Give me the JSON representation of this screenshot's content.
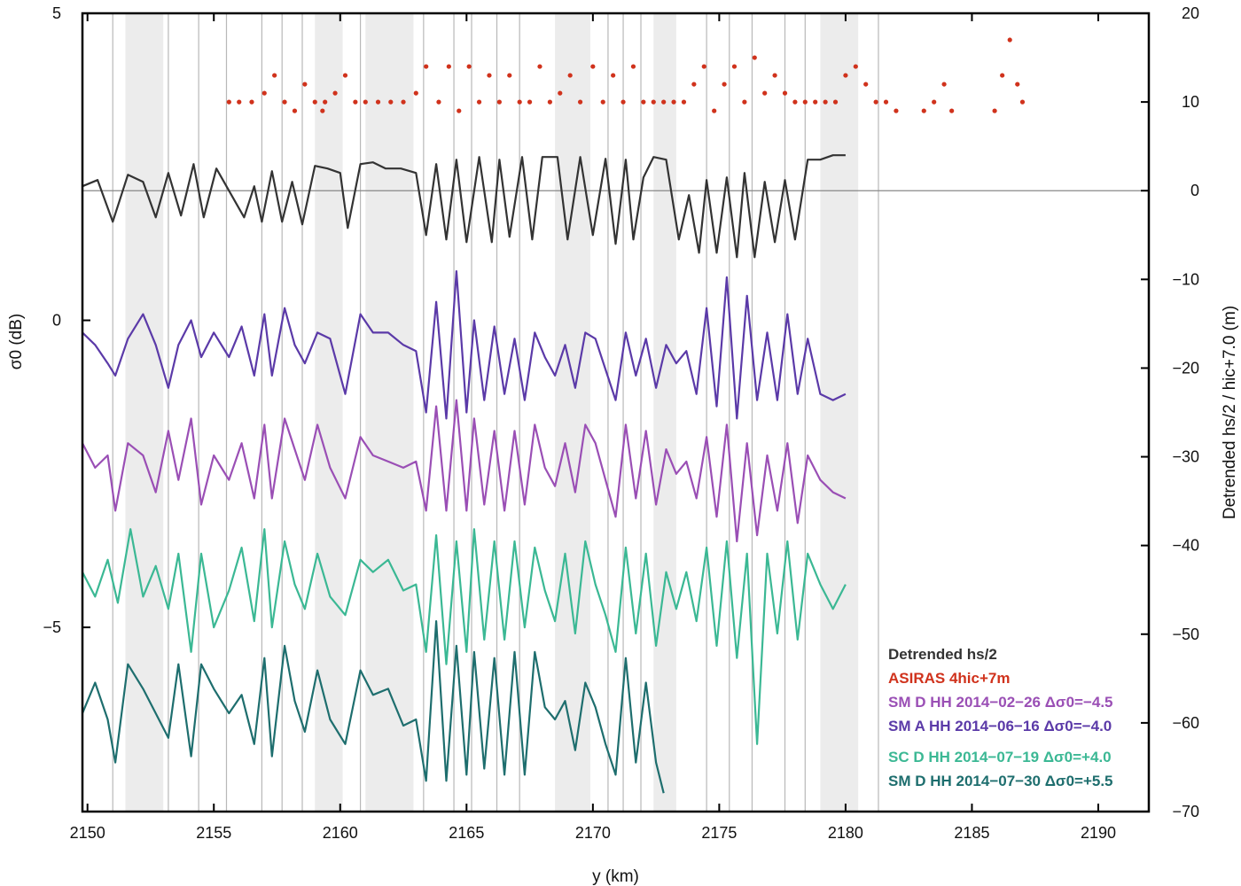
{
  "chart_data": {
    "type": "line",
    "xlabel": "y (km)",
    "ylabel_left": "σ0 (dB)",
    "ylabel_right": "Detrended hs/2 / hic+7.0  (m)",
    "xlim": [
      2149.8,
      2192
    ],
    "ylim_left": [
      -8,
      5
    ],
    "ylim_right": [
      -70,
      20
    ],
    "x_ticks": [
      "2150",
      "2155",
      "2160",
      "2165",
      "2170",
      "2175",
      "2180",
      "2185",
      "2190"
    ],
    "y_left_ticks": [
      "5",
      "0",
      "−5"
    ],
    "y_right_ticks": [
      "20",
      "10",
      "0",
      "−10",
      "−20",
      "−30",
      "−40",
      "−50",
      "−60",
      "−70"
    ],
    "grid": false,
    "shaded_bands_km": [
      [
        2151.5,
        2153.0
      ],
      [
        2159.0,
        2160.1
      ],
      [
        2161.0,
        2162.9
      ],
      [
        2168.5,
        2169.9
      ],
      [
        2172.4,
        2173.3
      ],
      [
        2179.0,
        2180.5
      ]
    ],
    "vertical_lines_km": [
      2151.0,
      2153.2,
      2154.4,
      2155.5,
      2156.9,
      2157.7,
      2158.5,
      2160.8,
      2163.3,
      2164.5,
      2165.2,
      2166.2,
      2167.1,
      2170.6,
      2171.2,
      2171.9,
      2174.5,
      2175.4,
      2176.3,
      2177.6,
      2178.4,
      2181.3
    ],
    "zero_line_right": 0,
    "series": [
      {
        "name": "Detrended hs/2",
        "color": "#333333",
        "axis": "right",
        "style": "line",
        "x": [
          2149.8,
          2150.4,
          2151.0,
          2151.6,
          2152.2,
          2152.7,
          2153.2,
          2153.7,
          2154.2,
          2154.6,
          2155.1,
          2155.6,
          2156.2,
          2156.6,
          2156.9,
          2157.3,
          2157.7,
          2158.1,
          2158.5,
          2159.0,
          2159.5,
          2160.0,
          2160.3,
          2160.8,
          2161.3,
          2161.8,
          2162.4,
          2163.0,
          2163.4,
          2163.8,
          2164.2,
          2164.6,
          2165.0,
          2165.5,
          2166.0,
          2166.3,
          2166.7,
          2167.2,
          2167.6,
          2168.0,
          2168.6,
          2169.0,
          2169.5,
          2170.0,
          2170.5,
          2170.9,
          2171.3,
          2171.6,
          2172.0,
          2172.4,
          2172.9,
          2173.4,
          2173.8,
          2174.2,
          2174.5,
          2174.9,
          2175.3,
          2175.7,
          2176.0,
          2176.4,
          2176.8,
          2177.2,
          2177.6,
          2178.0,
          2178.5,
          2179.0,
          2179.5,
          2180.0
        ],
        "y": [
          0.5,
          1.2,
          -3.5,
          1.8,
          1.0,
          -3.0,
          2.0,
          -2.8,
          3.0,
          -3.0,
          2.5,
          0.0,
          -3.0,
          0.5,
          -3.5,
          2.2,
          -3.5,
          1.0,
          -3.8,
          2.8,
          2.5,
          2.0,
          -4.2,
          3.0,
          3.2,
          2.5,
          2.5,
          2.0,
          -5.0,
          3.0,
          -5.5,
          3.5,
          -5.8,
          3.8,
          -5.8,
          3.5,
          -5.2,
          3.8,
          -5.5,
          3.8,
          3.8,
          -5.5,
          3.8,
          -5.0,
          3.6,
          -6.0,
          3.5,
          -5.5,
          1.5,
          3.8,
          3.5,
          -5.5,
          -0.5,
          -7.0,
          1.2,
          -7.0,
          1.5,
          -7.5,
          2.0,
          -7.5,
          1.0,
          -5.8,
          1.2,
          -5.5,
          3.5,
          3.5,
          4.0,
          4.0
        ]
      },
      {
        "name": "ASIRAS 4hic+7m",
        "color": "#d0321c",
        "axis": "right",
        "style": "dots",
        "segments": [
          {
            "x": [
              2155.6,
              2156.0,
              2156.5,
              2157.0,
              2157.4,
              2157.8,
              2158.2,
              2158.6,
              2159.0,
              2159.3
            ],
            "y": [
              10,
              10,
              10,
              11,
              13,
              10,
              9,
              12,
              10,
              9
            ]
          },
          {
            "x": [
              2159.4,
              2159.8,
              2160.2,
              2160.6,
              2161.0,
              2161.5,
              2162.0,
              2162.5,
              2163.0,
              2163.4,
              2163.9,
              2164.3,
              2164.7,
              2165.1,
              2165.5,
              2165.9,
              2166.3,
              2166.7,
              2167.1,
              2167.5,
              2167.9,
              2168.3,
              2168.7,
              2169.1,
              2169.5,
              2170.0,
              2170.4,
              2170.8,
              2171.2,
              2171.6,
              2172.0,
              2172.4,
              2172.8,
              2173.2,
              2173.6,
              2174.0,
              2174.4,
              2174.8,
              2175.2,
              2175.6,
              2176.0,
              2176.4,
              2176.8,
              2177.2,
              2177.6,
              2178.0,
              2178.4,
              2178.8,
              2179.2,
              2179.6,
              2180.0,
              2180.4,
              2180.8,
              2181.2,
              2181.6,
              2182.0
            ],
            "y": [
              10,
              11,
              13,
              10,
              10,
              10,
              10,
              10,
              11,
              14,
              10,
              14,
              9,
              14,
              10,
              13,
              10,
              13,
              10,
              10,
              14,
              10,
              11,
              13,
              10,
              14,
              10,
              13,
              10,
              14,
              10,
              10,
              10,
              10,
              10,
              12,
              14,
              9,
              12,
              14,
              10,
              15,
              11,
              13,
              11,
              10,
              10,
              10,
              10,
              10,
              13,
              14,
              12,
              10,
              10,
              9
            ]
          },
          {
            "x": [
              2183.1,
              2183.5,
              2183.9,
              2184.2
            ],
            "y": [
              9,
              10,
              12,
              9
            ]
          },
          {
            "x": [
              2185.9,
              2186.2,
              2186.5,
              2186.8,
              2187.0
            ],
            "y": [
              9,
              13,
              17,
              12,
              10
            ]
          }
        ]
      },
      {
        "name": "SM A HH 2014-06-16 Δσ0=-4.0",
        "color": "#5b3aa8",
        "axis": "left",
        "style": "line",
        "x": [
          2149.8,
          2150.3,
          2150.8,
          2151.1,
          2151.6,
          2152.2,
          2152.7,
          2153.2,
          2153.6,
          2154.1,
          2154.5,
          2155.0,
          2155.6,
          2156.1,
          2156.6,
          2157.0,
          2157.3,
          2157.8,
          2158.2,
          2158.6,
          2159.1,
          2159.6,
          2160.2,
          2160.8,
          2161.3,
          2161.9,
          2162.5,
          2163.0,
          2163.4,
          2163.8,
          2164.2,
          2164.6,
          2165.0,
          2165.3,
          2165.7,
          2166.1,
          2166.5,
          2166.9,
          2167.3,
          2167.7,
          2168.1,
          2168.5,
          2168.9,
          2169.3,
          2169.7,
          2170.1,
          2170.5,
          2170.9,
          2171.3,
          2171.7,
          2172.1,
          2172.5,
          2172.9,
          2173.3,
          2173.7,
          2174.1,
          2174.5,
          2174.9,
          2175.3,
          2175.7,
          2176.1,
          2176.5,
          2176.9,
          2177.3,
          2177.7,
          2178.1,
          2178.5,
          2179.0,
          2179.5,
          2180.0
        ],
        "y": [
          -0.2,
          -0.4,
          -0.7,
          -0.9,
          -0.3,
          0.1,
          -0.4,
          -1.1,
          -0.4,
          0.0,
          -0.6,
          -0.2,
          -0.6,
          -0.1,
          -0.9,
          0.1,
          -0.9,
          0.2,
          -0.4,
          -0.7,
          -0.2,
          -0.3,
          -1.2,
          0.1,
          -0.2,
          -0.2,
          -0.4,
          -0.5,
          -1.5,
          0.3,
          -1.6,
          0.8,
          -1.5,
          0.0,
          -1.3,
          -0.1,
          -1.2,
          -0.3,
          -1.3,
          -0.2,
          -0.6,
          -0.9,
          -0.4,
          -1.1,
          -0.2,
          -0.3,
          -0.8,
          -1.3,
          -0.2,
          -0.9,
          -0.3,
          -1.1,
          -0.4,
          -0.7,
          -0.5,
          -1.2,
          0.2,
          -1.4,
          0.7,
          -1.6,
          0.4,
          -1.3,
          -0.2,
          -1.3,
          0.1,
          -1.2,
          -0.3,
          -1.2,
          -1.3,
          -1.2
        ]
      },
      {
        "name": "SM D HH 2014-02-26 Δσ0=-4.5",
        "color": "#9a4fb5",
        "axis": "left",
        "style": "line",
        "x": [
          2149.8,
          2150.3,
          2150.8,
          2151.1,
          2151.6,
          2152.2,
          2152.7,
          2153.2,
          2153.6,
          2154.1,
          2154.5,
          2155.0,
          2155.6,
          2156.1,
          2156.6,
          2157.0,
          2157.3,
          2157.8,
          2158.2,
          2158.6,
          2159.1,
          2159.6,
          2160.2,
          2160.8,
          2161.3,
          2161.9,
          2162.5,
          2163.0,
          2163.4,
          2163.8,
          2164.2,
          2164.6,
          2165.0,
          2165.3,
          2165.7,
          2166.1,
          2166.5,
          2166.9,
          2167.3,
          2167.7,
          2168.1,
          2168.5,
          2168.9,
          2169.3,
          2169.7,
          2170.1,
          2170.5,
          2170.9,
          2171.3,
          2171.7,
          2172.1,
          2172.5,
          2172.9,
          2173.3,
          2173.7,
          2174.1,
          2174.5,
          2174.9,
          2175.3,
          2175.7,
          2176.1,
          2176.5,
          2176.9,
          2177.3,
          2177.7,
          2178.1,
          2178.5,
          2179.0,
          2179.5,
          2180.0
        ],
        "y": [
          -2.0,
          -2.4,
          -2.2,
          -3.1,
          -2.0,
          -2.2,
          -2.8,
          -1.8,
          -2.6,
          -1.6,
          -3.0,
          -2.2,
          -2.6,
          -2.0,
          -2.9,
          -1.7,
          -2.9,
          -1.6,
          -2.1,
          -2.6,
          -1.7,
          -2.4,
          -2.9,
          -1.9,
          -2.2,
          -2.3,
          -2.4,
          -2.3,
          -3.1,
          -1.4,
          -3.1,
          -1.3,
          -3.1,
          -1.6,
          -3.0,
          -1.8,
          -3.1,
          -1.8,
          -3.0,
          -1.7,
          -2.4,
          -2.7,
          -2.0,
          -2.8,
          -1.7,
          -2.0,
          -2.6,
          -3.2,
          -1.7,
          -2.9,
          -1.8,
          -3.0,
          -2.1,
          -2.5,
          -2.3,
          -2.9,
          -1.9,
          -3.2,
          -1.7,
          -3.6,
          -2.0,
          -3.5,
          -2.2,
          -3.1,
          -2.0,
          -3.3,
          -2.2,
          -2.6,
          -2.8,
          -2.9
        ]
      },
      {
        "name": "SC D HH 2014-07-19 Δσ0=+4.0",
        "color": "#3bb894",
        "axis": "left",
        "style": "line",
        "x": [
          2149.8,
          2150.3,
          2150.8,
          2151.2,
          2151.7,
          2152.2,
          2152.7,
          2153.2,
          2153.6,
          2154.1,
          2154.5,
          2155.0,
          2155.6,
          2156.1,
          2156.6,
          2157.0,
          2157.3,
          2157.8,
          2158.2,
          2158.6,
          2159.1,
          2159.6,
          2160.2,
          2160.8,
          2161.3,
          2161.9,
          2162.5,
          2163.0,
          2163.4,
          2163.8,
          2164.2,
          2164.6,
          2165.0,
          2165.3,
          2165.7,
          2166.1,
          2166.5,
          2166.9,
          2167.3,
          2167.7,
          2168.1,
          2168.5,
          2168.9,
          2169.3,
          2169.7,
          2170.1,
          2170.5,
          2170.9,
          2171.3,
          2171.7,
          2172.1,
          2172.5,
          2172.9,
          2173.3,
          2173.7,
          2174.1,
          2174.5,
          2174.9,
          2175.3,
          2175.7,
          2176.1,
          2176.5,
          2176.9,
          2177.3,
          2177.7,
          2178.1,
          2178.5,
          2179.0,
          2179.5,
          2180.0
        ],
        "y": [
          -4.1,
          -4.5,
          -3.9,
          -4.6,
          -3.4,
          -4.5,
          -4.0,
          -4.7,
          -3.8,
          -5.4,
          -3.8,
          -5.0,
          -4.4,
          -3.7,
          -4.9,
          -3.4,
          -5.0,
          -3.6,
          -4.3,
          -4.7,
          -3.8,
          -4.5,
          -4.8,
          -3.9,
          -4.1,
          -3.9,
          -4.4,
          -4.3,
          -5.4,
          -3.5,
          -5.6,
          -3.6,
          -5.4,
          -3.4,
          -5.2,
          -3.6,
          -5.2,
          -3.6,
          -5.0,
          -3.7,
          -4.4,
          -4.9,
          -3.8,
          -5.1,
          -3.6,
          -4.3,
          -4.8,
          -5.4,
          -3.7,
          -5.1,
          -3.8,
          -5.3,
          -4.1,
          -4.7,
          -4.1,
          -4.9,
          -3.7,
          -5.3,
          -3.6,
          -5.5,
          -3.8,
          -6.9,
          -3.8,
          -5.1,
          -3.6,
          -5.2,
          -3.8,
          -4.3,
          -4.7,
          -4.3
        ]
      },
      {
        "name": "SM D HH 2014-07-30 Δσ0=+5.5",
        "color": "#1e6e6e",
        "axis": "left",
        "style": "line",
        "x": [
          2149.8,
          2150.3,
          2150.8,
          2151.1,
          2151.6,
          2152.2,
          2152.7,
          2153.2,
          2153.6,
          2154.1,
          2154.5,
          2155.0,
          2155.6,
          2156.1,
          2156.6,
          2157.0,
          2157.3,
          2157.8,
          2158.2,
          2158.6,
          2159.1,
          2159.6,
          2160.2,
          2160.8,
          2161.3,
          2161.9,
          2162.5,
          2163.0,
          2163.4,
          2163.8,
          2164.2,
          2164.6,
          2165.0,
          2165.3,
          2165.7,
          2166.1,
          2166.5,
          2166.9,
          2167.3,
          2167.7,
          2168.1,
          2168.5,
          2168.9,
          2169.3,
          2169.7,
          2170.1,
          2170.5,
          2170.9,
          2171.3,
          2171.7,
          2172.1,
          2172.5,
          2172.8
        ],
        "y": [
          -6.4,
          -5.9,
          -6.5,
          -7.2,
          -5.6,
          -6.0,
          -6.4,
          -6.8,
          -5.6,
          -7.1,
          -5.6,
          -6.0,
          -6.4,
          -6.1,
          -6.9,
          -5.5,
          -7.1,
          -5.3,
          -6.2,
          -6.7,
          -5.7,
          -6.5,
          -6.9,
          -5.7,
          -6.1,
          -6.0,
          -6.6,
          -6.5,
          -7.5,
          -4.9,
          -7.5,
          -5.3,
          -7.4,
          -5.4,
          -7.3,
          -5.5,
          -7.4,
          -5.4,
          -7.4,
          -5.4,
          -6.3,
          -6.5,
          -6.2,
          -7.0,
          -5.9,
          -6.3,
          -6.9,
          -7.4,
          -5.5,
          -7.2,
          -5.9,
          -7.2,
          -7.7
        ]
      }
    ],
    "legend_position": "bottom-right",
    "legend": [
      {
        "label": "Detrended hs/2",
        "color": "#333333"
      },
      {
        "label": "ASIRAS 4hic+7m",
        "color": "#d0321c"
      },
      {
        "label": "SM D HH 2014−02−26 Δσ0=−4.5",
        "color": "#9a4fb5"
      },
      {
        "label": "SM A HH 2014−06−16 Δσ0=−4.0",
        "color": "#5b3aa8"
      },
      {
        "label": "SC D HH 2014−07−19 Δσ0=+4.0",
        "color": "#3bb894"
      },
      {
        "label": "SM D HH 2014−07−30 Δσ0=+5.5",
        "color": "#1e6e6e"
      }
    ]
  }
}
